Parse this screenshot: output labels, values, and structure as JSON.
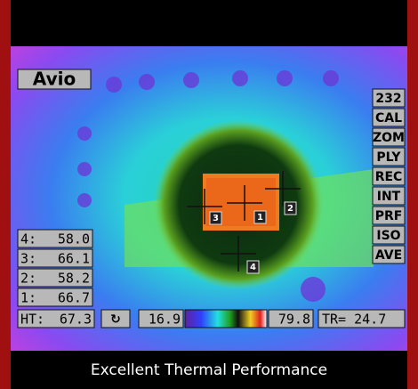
{
  "brand": "Avio",
  "menu": [
    "232",
    "CAL",
    "ZOM",
    "PLY",
    "REC",
    "INT",
    "PRF",
    "ISO",
    "AVE"
  ],
  "markers": [
    "1",
    "2",
    "3",
    "4"
  ],
  "readings": [
    {
      "label": "4:",
      "value": "58.0"
    },
    {
      "label": "3:",
      "value": "66.1"
    },
    {
      "label": "2:",
      "value": "58.2"
    },
    {
      "label": "1:",
      "value": "66.7"
    }
  ],
  "status": {
    "ht_label": "HT:",
    "ht_value": "67.3",
    "scale_min": "16.9",
    "scale_max": "79.8",
    "tr": "TR= 24.7"
  },
  "caption": "Excellent Thermal Performance"
}
